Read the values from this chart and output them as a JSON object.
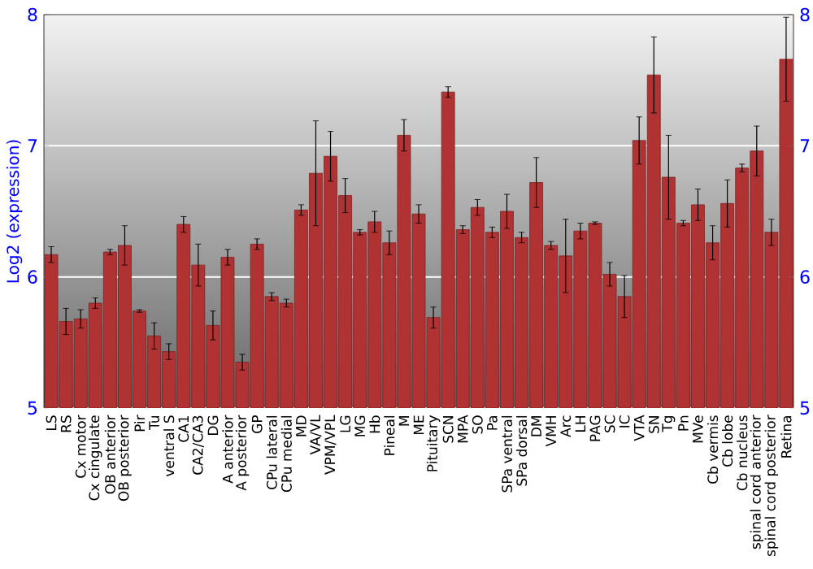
{
  "chart_data": {
    "type": "bar",
    "ylabel": "Log2 (expression)",
    "categories": [
      "LS",
      "RS",
      "Cx motor",
      "Cx cingulate",
      "OB anterior",
      "OB posterior",
      "Pir",
      "Tu",
      "ventral S",
      "CA1",
      "CA2/CA3",
      "DG",
      "A anterior",
      "A posterior",
      "GP",
      "CPu lateral",
      "CPu medial",
      "MD",
      "VA/VL",
      "VPM/VPL",
      "LG",
      "MG",
      "Hb",
      "Pineal",
      "M",
      "ME",
      "Pituitary",
      "SCN",
      "MPA",
      "SO",
      "Pa",
      "SPa ventral",
      "SPa dorsal",
      "DM",
      "VMH",
      "Arc",
      "LH",
      "PAG",
      "SC",
      "IC",
      "VTA",
      "SN",
      "Tg",
      "Pn",
      "MVe",
      "Cb vermis",
      "Cb lobe",
      "Cb nucleus",
      "spinal cord anterior",
      "spinal cord posterior",
      "Retina"
    ],
    "values": [
      6.17,
      5.66,
      5.68,
      5.8,
      6.19,
      6.24,
      5.74,
      5.55,
      5.43,
      6.4,
      6.09,
      5.63,
      6.15,
      5.35,
      6.25,
      5.85,
      5.8,
      6.51,
      6.79,
      6.92,
      6.62,
      6.34,
      6.42,
      6.26,
      7.08,
      6.48,
      5.69,
      7.41,
      6.36,
      6.53,
      6.34,
      6.5,
      6.3,
      6.72,
      6.24,
      6.16,
      6.35,
      6.41,
      6.02,
      5.85,
      7.04,
      7.54,
      6.76,
      6.41,
      6.55,
      6.26,
      6.56,
      6.83,
      6.96,
      6.34,
      7.66
    ],
    "errors": [
      0.06,
      0.1,
      0.07,
      0.04,
      0.02,
      0.15,
      0.01,
      0.1,
      0.06,
      0.06,
      0.16,
      0.11,
      0.06,
      0.06,
      0.04,
      0.03,
      0.03,
      0.04,
      0.4,
      0.19,
      0.13,
      0.02,
      0.08,
      0.09,
      0.12,
      0.07,
      0.08,
      0.04,
      0.03,
      0.06,
      0.04,
      0.13,
      0.04,
      0.19,
      0.03,
      0.28,
      0.06,
      0.01,
      0.09,
      0.16,
      0.18,
      0.29,
      0.32,
      0.02,
      0.12,
      0.13,
      0.18,
      0.03,
      0.19,
      0.1,
      0.32
    ],
    "color": "#b03232",
    "ylim": [
      5,
      8
    ],
    "yticks": [
      5,
      6,
      7,
      8
    ],
    "y2lim": [
      5,
      8
    ],
    "y2ticks": [
      5,
      6,
      7,
      8
    ],
    "grid": "y"
  }
}
